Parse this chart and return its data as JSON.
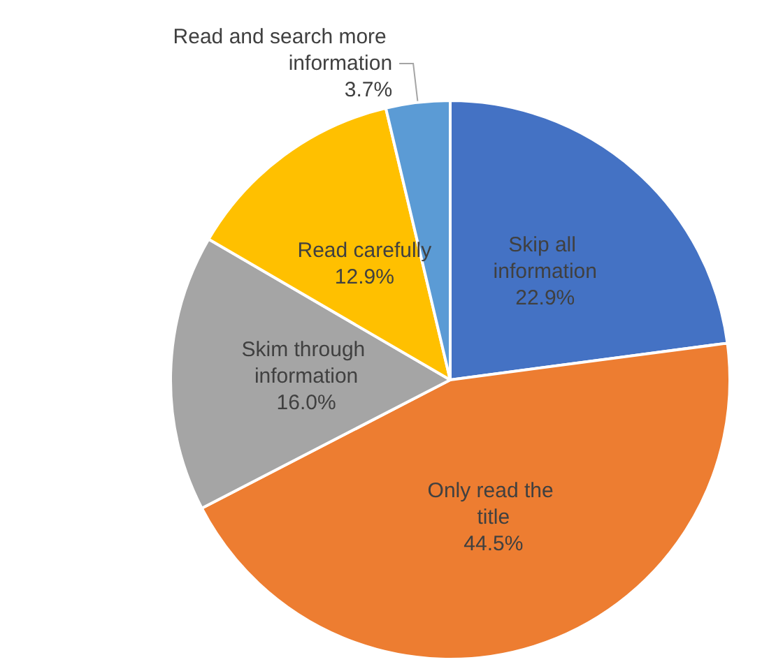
{
  "chart_data": {
    "type": "pie",
    "categories": [
      "Skip all information",
      "Only read the title",
      "Skim through information",
      "Read carefully",
      "Read and search more information"
    ],
    "values": [
      22.9,
      44.5,
      16.0,
      12.9,
      3.7
    ],
    "value_labels": [
      "22.9%",
      "44.5%",
      "16.0%",
      "12.9%",
      "3.7%"
    ],
    "colors": [
      "#4472c4",
      "#ed7d31",
      "#a5a5a5",
      "#ffc000",
      "#5b9bd5"
    ],
    "legend": false
  }
}
